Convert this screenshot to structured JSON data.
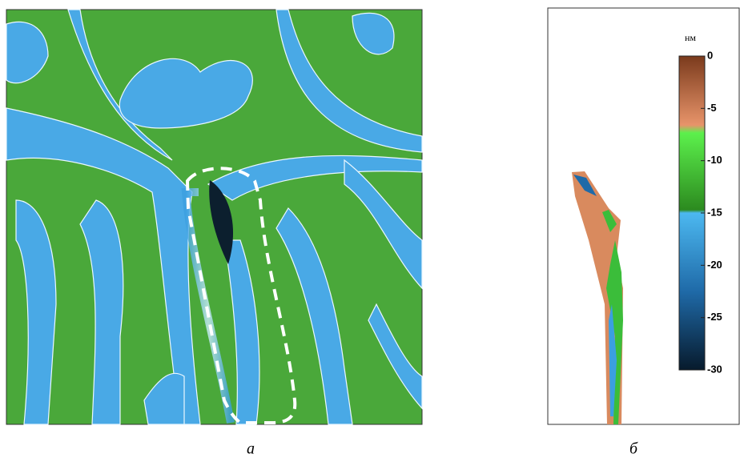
{
  "panels": {
    "a": {
      "label": "а"
    },
    "b": {
      "label": "б"
    }
  },
  "colorbar": {
    "unit": "нм",
    "lim": [
      0,
      -30
    ],
    "ticks": [
      0,
      -5,
      -10,
      -15,
      -20,
      -25,
      -30
    ]
  }
}
